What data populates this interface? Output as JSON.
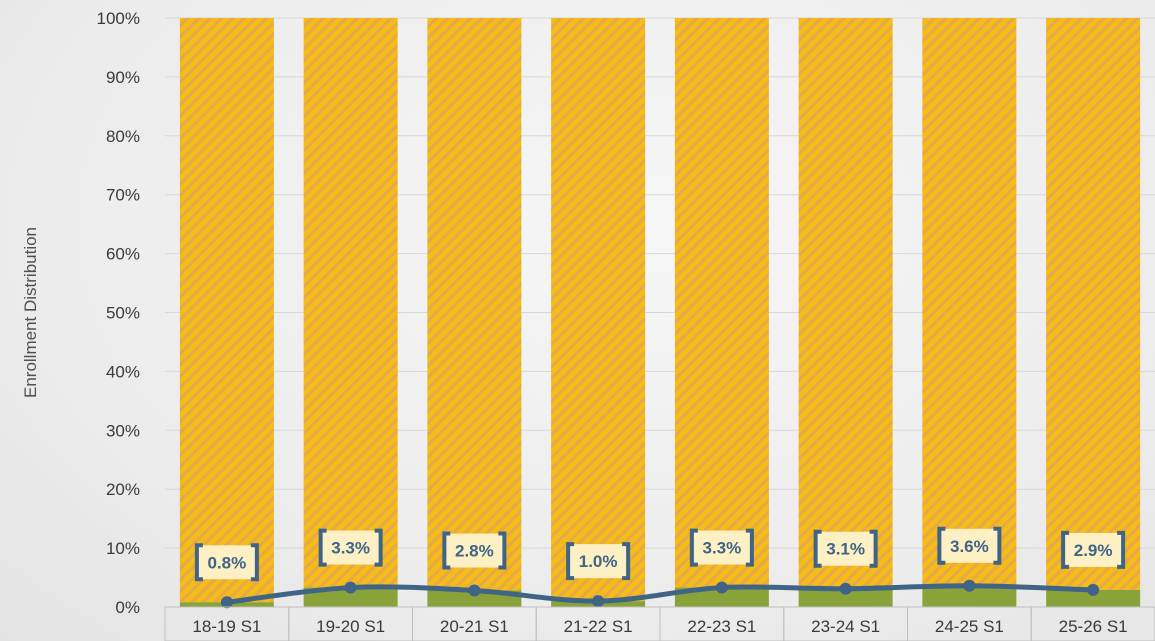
{
  "chart_data": {
    "type": "bar",
    "stacked": true,
    "percent_stacked": true,
    "categories": [
      "18-19 S1",
      "19-20 S1",
      "20-21 S1",
      "21-22 S1",
      "22-23 S1",
      "23-24 S1",
      "24-25 S1",
      "25-26 S1"
    ],
    "series": [
      {
        "type": "bar",
        "values": [
          0.8,
          3.3,
          2.8,
          1.0,
          3.3,
          3.1,
          3.6,
          2.9
        ],
        "color": "#8aa23a"
      },
      {
        "type": "bar",
        "values": [
          99.2,
          96.7,
          97.2,
          99.0,
          96.7,
          96.9,
          96.4,
          97.1
        ],
        "color": "#f5bb16",
        "pattern": "diagonal-hatch"
      },
      {
        "type": "line",
        "values": [
          0.8,
          3.3,
          2.8,
          1.0,
          3.3,
          3.1,
          3.6,
          2.9
        ],
        "color": "#3f6485",
        "data_labels": [
          "0.8%",
          "3.3%",
          "2.8%",
          "1.0%",
          "3.3%",
          "3.1%",
          "3.6%",
          "2.9%"
        ]
      }
    ],
    "ylabel": "Enrollment Distribution",
    "ylim": [
      0,
      100
    ],
    "yticks": [
      "0%",
      "10%",
      "20%",
      "30%",
      "40%",
      "50%",
      "60%",
      "70%",
      "80%",
      "90%",
      "100%"
    ],
    "grid": true,
    "legend": "none"
  },
  "colors": {
    "gridline": "#d8d8d8",
    "label_box_fill": "#fdf0c4",
    "label_bracket": "#3f6485",
    "label_text": "#3f6485",
    "hatch_stripe": "#e5a84a",
    "category_box_border": "#c0c0c0"
  }
}
